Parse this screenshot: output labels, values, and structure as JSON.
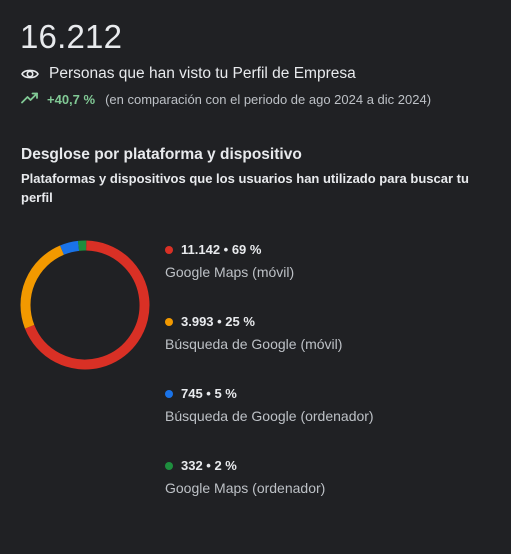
{
  "summary": {
    "total": "16.212",
    "views_label": "Personas que han visto tu Perfil de Empresa",
    "trend_percent": "+40,7 %",
    "trend_note": "(en comparación con el periodo de ago 2024 a dic 2024)",
    "icons": {
      "views": "eye-icon",
      "trend": "trending-up-icon"
    },
    "colors": {
      "trend": "#81c995"
    }
  },
  "breakdown": {
    "title": "Desglose por plataforma y dispositivo",
    "subtitle": "Plataformas y dispositivos que los usuarios han utilizado para buscar tu perfil"
  },
  "chart_data": {
    "type": "pie",
    "donut": true,
    "slices": [
      {
        "value": 11142,
        "percent": 69,
        "display": "11.142 • 69 %",
        "label": "Google Maps (móvil)",
        "color": "#d93025"
      },
      {
        "value": 3993,
        "percent": 25,
        "display": "3.993 • 25 %",
        "label": "Búsqueda de Google (móvil)",
        "color": "#f29900"
      },
      {
        "value": 745,
        "percent": 5,
        "display": "745 • 5 %",
        "label": "Búsqueda de Google (ordenador)",
        "color": "#1a73e8"
      },
      {
        "value": 332,
        "percent": 2,
        "display": "332 • 2 %",
        "label": "Google Maps (ordenador)",
        "color": "#1e8e3e"
      }
    ]
  }
}
